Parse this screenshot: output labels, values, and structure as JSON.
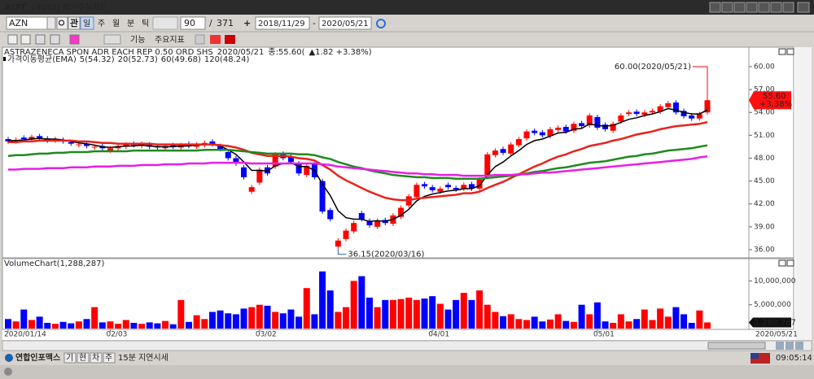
{
  "window": {
    "logo": "BEST",
    "title": "[4092] 해외주식차트"
  },
  "toolbar": {
    "symbol": "AZN",
    "watch_button": "관",
    "periods": [
      "일",
      "주",
      "월",
      "분",
      "틱"
    ],
    "count": 90,
    "separator": "/",
    "total": 371,
    "date_from": "2018/11/29",
    "date_dash": "-",
    "date_to": "2020/05/21",
    "menu_function": "기능",
    "menu_indicator": "주요지표"
  },
  "chart_data": {
    "type": "candlestick",
    "title": "ASTRAZENECA SPON ADR EACH REP 0.50 ORD SHS",
    "quote_date": "2020/05/21",
    "quote_close": "종:55.60(",
    "quote_change": "▲1.82 +3.38%)",
    "categories": [
      "2020/01/14",
      null,
      null,
      null,
      null,
      null,
      null,
      null,
      null,
      null,
      null,
      null,
      null,
      "02/03",
      null,
      null,
      null,
      null,
      null,
      null,
      null,
      null,
      null,
      null,
      null,
      null,
      null,
      null,
      null,
      null,
      null,
      null,
      "03/02",
      null,
      null,
      null,
      null,
      null,
      null,
      null,
      null,
      null,
      null,
      null,
      null,
      null,
      null,
      null,
      null,
      null,
      null,
      null,
      null,
      null,
      "04/01",
      null,
      null,
      null,
      null,
      null,
      null,
      null,
      null,
      null,
      null,
      null,
      null,
      null,
      null,
      null,
      null,
      null,
      null,
      null,
      null,
      "05/01",
      null,
      null,
      null,
      null,
      null,
      null,
      null,
      null,
      null,
      null,
      null,
      null,
      null,
      null
    ],
    "end_date_label": "2020/05/21",
    "open": [
      50.5,
      50.2,
      50.7,
      50.5,
      50.9,
      50.6,
      50.3,
      50.4,
      50.1,
      49.7,
      49.9,
      49.4,
      49.6,
      49.0,
      49.3,
      49.5,
      49.9,
      49.6,
      49.8,
      49.6,
      49.3,
      49.7,
      49.4,
      49.9,
      49.5,
      49.7,
      50.2,
      49.6,
      48.8,
      48.0,
      46.8,
      43.6,
      44.8,
      46.8,
      46.9,
      48.6,
      48.2,
      47.3,
      45.8,
      47.2,
      45.0,
      41.2,
      36.4,
      37.4,
      38.4,
      40.8,
      39.8,
      39.0,
      39.9,
      39.4,
      40.3,
      41.8,
      42.9,
      44.6,
      44.2,
      43.6,
      44.5,
      44.1,
      44.0,
      44.6,
      44.0,
      45.6,
      48.4,
      49.2,
      48.6,
      49.7,
      50.6,
      51.6,
      51.4,
      50.9,
      51.7,
      52.1,
      51.6,
      52.6,
      52.3,
      53.4,
      52.4,
      51.6,
      52.8,
      53.8,
      54.1,
      53.7,
      54.0,
      54.1,
      54.7,
      55.3,
      54.2,
      53.6,
      53.2,
      54.0
    ],
    "high": [
      50.8,
      50.7,
      51.0,
      51.1,
      51.2,
      50.9,
      50.8,
      50.7,
      50.4,
      50.1,
      50.2,
      49.8,
      49.9,
      49.6,
      49.9,
      50.1,
      50.2,
      50.2,
      50.1,
      49.9,
      49.9,
      50.0,
      50.0,
      50.2,
      50.1,
      50.3,
      50.5,
      49.9,
      49.1,
      48.3,
      47.1,
      44.5,
      46.8,
      47.1,
      48.8,
      48.9,
      48.5,
      47.6,
      47.3,
      47.5,
      45.3,
      41.5,
      37.5,
      38.8,
      39.8,
      41.1,
      40.1,
      40.1,
      40.2,
      40.8,
      41.8,
      43.3,
      44.8,
      44.9,
      44.5,
      44.3,
      44.8,
      44.4,
      44.8,
      44.9,
      45.5,
      48.8,
      49.3,
      49.5,
      50.1,
      50.8,
      51.8,
      51.9,
      51.7,
      52.1,
      52.3,
      52.4,
      52.8,
      52.9,
      53.9,
      53.7,
      52.7,
      52.8,
      53.9,
      54.3,
      54.4,
      54.3,
      54.5,
      55.1,
      55.5,
      55.6,
      54.5,
      53.9,
      54.1,
      60.0
    ],
    "low": [
      49.9,
      49.9,
      50.2,
      50.2,
      50.3,
      50.0,
      50.0,
      49.9,
      49.6,
      49.4,
      49.3,
      49.1,
      49.0,
      48.7,
      49.0,
      49.2,
      49.4,
      49.3,
      49.2,
      49.1,
      49.0,
      49.2,
      49.1,
      49.3,
      49.2,
      49.4,
      49.5,
      48.9,
      47.7,
      47.0,
      45.2,
      43.3,
      44.5,
      45.7,
      46.6,
      47.7,
      47.2,
      45.7,
      45.5,
      45.2,
      40.7,
      39.7,
      36.15,
      37.1,
      38.1,
      39.7,
      38.9,
      38.7,
      39.2,
      39.1,
      40.0,
      41.5,
      42.6,
      44.0,
      43.5,
      43.3,
      43.9,
      43.6,
      43.7,
      43.7,
      43.7,
      45.3,
      48.1,
      48.4,
      48.3,
      49.4,
      50.3,
      51.0,
      50.7,
      50.6,
      51.4,
      51.2,
      51.3,
      51.9,
      52.0,
      51.7,
      51.5,
      51.3,
      52.5,
      53.5,
      53.5,
      53.4,
      53.7,
      53.8,
      54.4,
      53.7,
      53.2,
      52.9,
      52.9,
      53.7
    ],
    "close": [
      50.2,
      50.4,
      50.5,
      50.8,
      50.6,
      50.3,
      50.5,
      50.2,
      49.9,
      49.8,
      49.6,
      49.5,
      49.3,
      49.3,
      49.6,
      49.8,
      49.7,
      49.9,
      49.5,
      49.4,
      49.6,
      49.5,
      49.7,
      49.6,
      49.8,
      50.0,
      49.8,
      49.2,
      48.0,
      47.3,
      45.5,
      44.2,
      46.5,
      46.0,
      48.5,
      48.0,
      47.5,
      46.0,
      47.0,
      45.5,
      41.0,
      40.0,
      37.2,
      38.5,
      39.5,
      40.0,
      39.2,
      39.8,
      39.5,
      40.5,
      41.5,
      43.0,
      44.5,
      44.3,
      43.8,
      44.0,
      44.2,
      43.9,
      44.5,
      44.0,
      45.2,
      48.5,
      49.0,
      48.7,
      49.8,
      50.5,
      51.5,
      51.3,
      51.0,
      51.8,
      52.0,
      51.5,
      52.5,
      52.2,
      53.6,
      52.0,
      51.8,
      52.5,
      53.6,
      54.0,
      53.8,
      54.0,
      54.2,
      54.8,
      55.2,
      54.0,
      53.5,
      53.2,
      53.78,
      55.6
    ],
    "up_color": "#ff0000",
    "down_color": "#0000ff",
    "ylim": [
      35.04,
      62.13
    ],
    "yticks": [
      {
        "value": 36,
        "label": "36.00"
      },
      {
        "value": 39,
        "label": "39.00"
      },
      {
        "value": 42,
        "label": "42.00"
      },
      {
        "value": 45,
        "label": "45.00"
      },
      {
        "value": 48,
        "label": "48.00"
      },
      {
        "value": 51,
        "label": "51.00"
      },
      {
        "value": 54,
        "label": "54.00"
      },
      {
        "value": 57,
        "label": "57.00"
      },
      {
        "value": 60,
        "label": "60.00"
      }
    ],
    "high_label": "60.00(2020/05/21)",
    "low_label": "36.15(2020/03/16)",
    "last_close_label": "55.60",
    "last_change_label": "+3.38%",
    "ma_title": "가격이동평균(EMA)",
    "series": [
      {
        "name": "5(54.32)",
        "color": "#000000",
        "values": [
          50.3,
          50.3,
          50.4,
          50.5,
          50.6,
          50.5,
          50.5,
          50.4,
          50.2,
          50.0,
          49.9,
          49.7,
          49.5,
          49.4,
          49.5,
          49.6,
          49.6,
          49.7,
          49.6,
          49.5,
          49.5,
          49.5,
          49.6,
          49.6,
          49.7,
          49.8,
          49.8,
          49.6,
          49.1,
          48.5,
          47.5,
          46.4,
          46.4,
          46.3,
          47.0,
          47.3,
          47.4,
          46.9,
          46.9,
          46.4,
          44.6,
          43.1,
          41.1,
          40.2,
          40.0,
          40.0,
          39.7,
          39.8,
          39.7,
          40.0,
          40.5,
          41.3,
          42.4,
          43.0,
          43.3,
          43.5,
          43.7,
          43.8,
          44.0,
          44.0,
          44.4,
          45.8,
          46.9,
          47.5,
          48.3,
          49.0,
          49.8,
          50.3,
          50.5,
          50.9,
          51.3,
          51.4,
          51.8,
          51.9,
          52.5,
          52.3,
          52.2,
          52.3,
          52.7,
          53.1,
          53.3,
          53.6,
          53.8,
          54.1,
          54.5,
          54.3,
          54.0,
          53.8,
          53.8,
          54.32
        ]
      },
      {
        "name": "20(52.73)",
        "color": "#e8231c",
        "values": [
          50.1,
          50.1,
          50.2,
          50.2,
          50.3,
          50.3,
          50.3,
          50.3,
          50.3,
          50.2,
          50.2,
          50.1,
          50.0,
          50.0,
          49.9,
          49.9,
          49.9,
          49.9,
          49.9,
          49.8,
          49.8,
          49.8,
          49.8,
          49.8,
          49.8,
          49.8,
          49.8,
          49.7,
          49.6,
          49.4,
          49.1,
          48.7,
          48.5,
          48.3,
          48.3,
          48.3,
          48.2,
          48.0,
          47.9,
          47.7,
          47.1,
          46.5,
          45.7,
          45.1,
          44.6,
          44.1,
          43.6,
          43.2,
          42.8,
          42.6,
          42.5,
          42.5,
          42.7,
          42.8,
          42.9,
          43.0,
          43.1,
          43.2,
          43.4,
          43.4,
          43.6,
          44.1,
          44.5,
          44.9,
          45.4,
          45.9,
          46.4,
          46.9,
          47.3,
          47.8,
          48.2,
          48.5,
          48.9,
          49.2,
          49.6,
          49.8,
          50.0,
          50.3,
          50.5,
          50.8,
          51.1,
          51.3,
          51.5,
          51.8,
          52.0,
          52.2,
          52.3,
          52.4,
          52.5,
          52.73
        ]
      },
      {
        "name": "60(49.68)",
        "color": "#1f8a1f",
        "values": [
          48.3,
          48.4,
          48.4,
          48.5,
          48.6,
          48.6,
          48.7,
          48.7,
          48.8,
          48.8,
          48.8,
          48.9,
          48.9,
          48.9,
          48.9,
          48.9,
          49.0,
          49.0,
          49.0,
          49.0,
          49.0,
          49.0,
          49.0,
          49.0,
          49.0,
          49.1,
          49.1,
          49.1,
          49.1,
          49.0,
          48.9,
          48.8,
          48.7,
          48.6,
          48.6,
          48.6,
          48.6,
          48.5,
          48.5,
          48.4,
          48.1,
          47.9,
          47.5,
          47.2,
          46.9,
          46.7,
          46.4,
          46.2,
          46.0,
          45.8,
          45.7,
          45.6,
          45.5,
          45.5,
          45.4,
          45.4,
          45.4,
          45.3,
          45.3,
          45.3,
          45.3,
          45.4,
          45.5,
          45.6,
          45.7,
          45.8,
          46.0,
          46.2,
          46.3,
          46.5,
          46.7,
          46.8,
          47.0,
          47.2,
          47.4,
          47.5,
          47.6,
          47.8,
          48.0,
          48.2,
          48.3,
          48.5,
          48.6,
          48.8,
          49.0,
          49.1,
          49.2,
          49.3,
          49.5,
          49.68
        ]
      },
      {
        "name": "120(48.24)",
        "color": "#e81ee8",
        "values": [
          46.5,
          46.5,
          46.6,
          46.6,
          46.6,
          46.7,
          46.7,
          46.7,
          46.8,
          46.8,
          46.8,
          46.9,
          46.9,
          46.9,
          47.0,
          47.0,
          47.0,
          47.1,
          47.1,
          47.1,
          47.2,
          47.2,
          47.2,
          47.3,
          47.3,
          47.3,
          47.4,
          47.4,
          47.4,
          47.4,
          47.4,
          47.3,
          47.3,
          47.3,
          47.3,
          47.3,
          47.3,
          47.3,
          47.3,
          47.3,
          47.2,
          47.1,
          46.9,
          46.8,
          46.7,
          46.6,
          46.5,
          46.4,
          46.3,
          46.2,
          46.1,
          46.0,
          46.0,
          45.9,
          45.9,
          45.8,
          45.8,
          45.8,
          45.7,
          45.7,
          45.7,
          45.7,
          45.8,
          45.8,
          45.8,
          45.9,
          45.9,
          46.0,
          46.1,
          46.1,
          46.2,
          46.3,
          46.4,
          46.5,
          46.6,
          46.7,
          46.8,
          46.9,
          47.0,
          47.1,
          47.2,
          47.3,
          47.4,
          47.5,
          47.6,
          47.7,
          47.8,
          47.9,
          48.1,
          48.24
        ]
      }
    ],
    "volume": {
      "title": "VolumeChart(1,288,287)",
      "values": [
        2000000,
        1500000,
        4000000,
        1800000,
        2500000,
        1200000,
        1000000,
        1400000,
        1100000,
        1500000,
        2000000,
        4500000,
        1300000,
        1500000,
        1000000,
        1800000,
        1200000,
        1000000,
        1300000,
        1100000,
        1600000,
        900000,
        6000000,
        1400000,
        2800000,
        2000000,
        3500000,
        3800000,
        3200000,
        3000000,
        4200000,
        4500000,
        5000000,
        4800000,
        3500000,
        3200000,
        4000000,
        2500000,
        8500000,
        3000000,
        12000000,
        8000000,
        3500000,
        4500000,
        10000000,
        11000000,
        6500000,
        4500000,
        6000000,
        6000000,
        6200000,
        6500000,
        6000000,
        6300000,
        6800000,
        5200000,
        4000000,
        6000000,
        7500000,
        6000000,
        8000000,
        5000000,
        3500000,
        2600000,
        3000000,
        2000000,
        1800000,
        2500000,
        1500000,
        1900000,
        3000000,
        1600000,
        1400000,
        5000000,
        3000000,
        5500000,
        1500000,
        1200000,
        3000000,
        1500000,
        2000000,
        4000000,
        1800000,
        4200000,
        2500000,
        4500000,
        3000000,
        1200000,
        3800000,
        1288287
      ],
      "ylim": [
        0,
        14000000
      ],
      "yticks": [
        {
          "value": 5000000,
          "label": "5,000,000"
        },
        {
          "value": 10000000,
          "label": "10,000,000"
        }
      ],
      "last_label": "1,288,287"
    }
  },
  "status_bar": {
    "provider": "연합인포맥스",
    "buttons": [
      "기",
      "현",
      "차",
      "주"
    ],
    "delay_note": "15분 지연시세",
    "time": "09:05:14"
  }
}
